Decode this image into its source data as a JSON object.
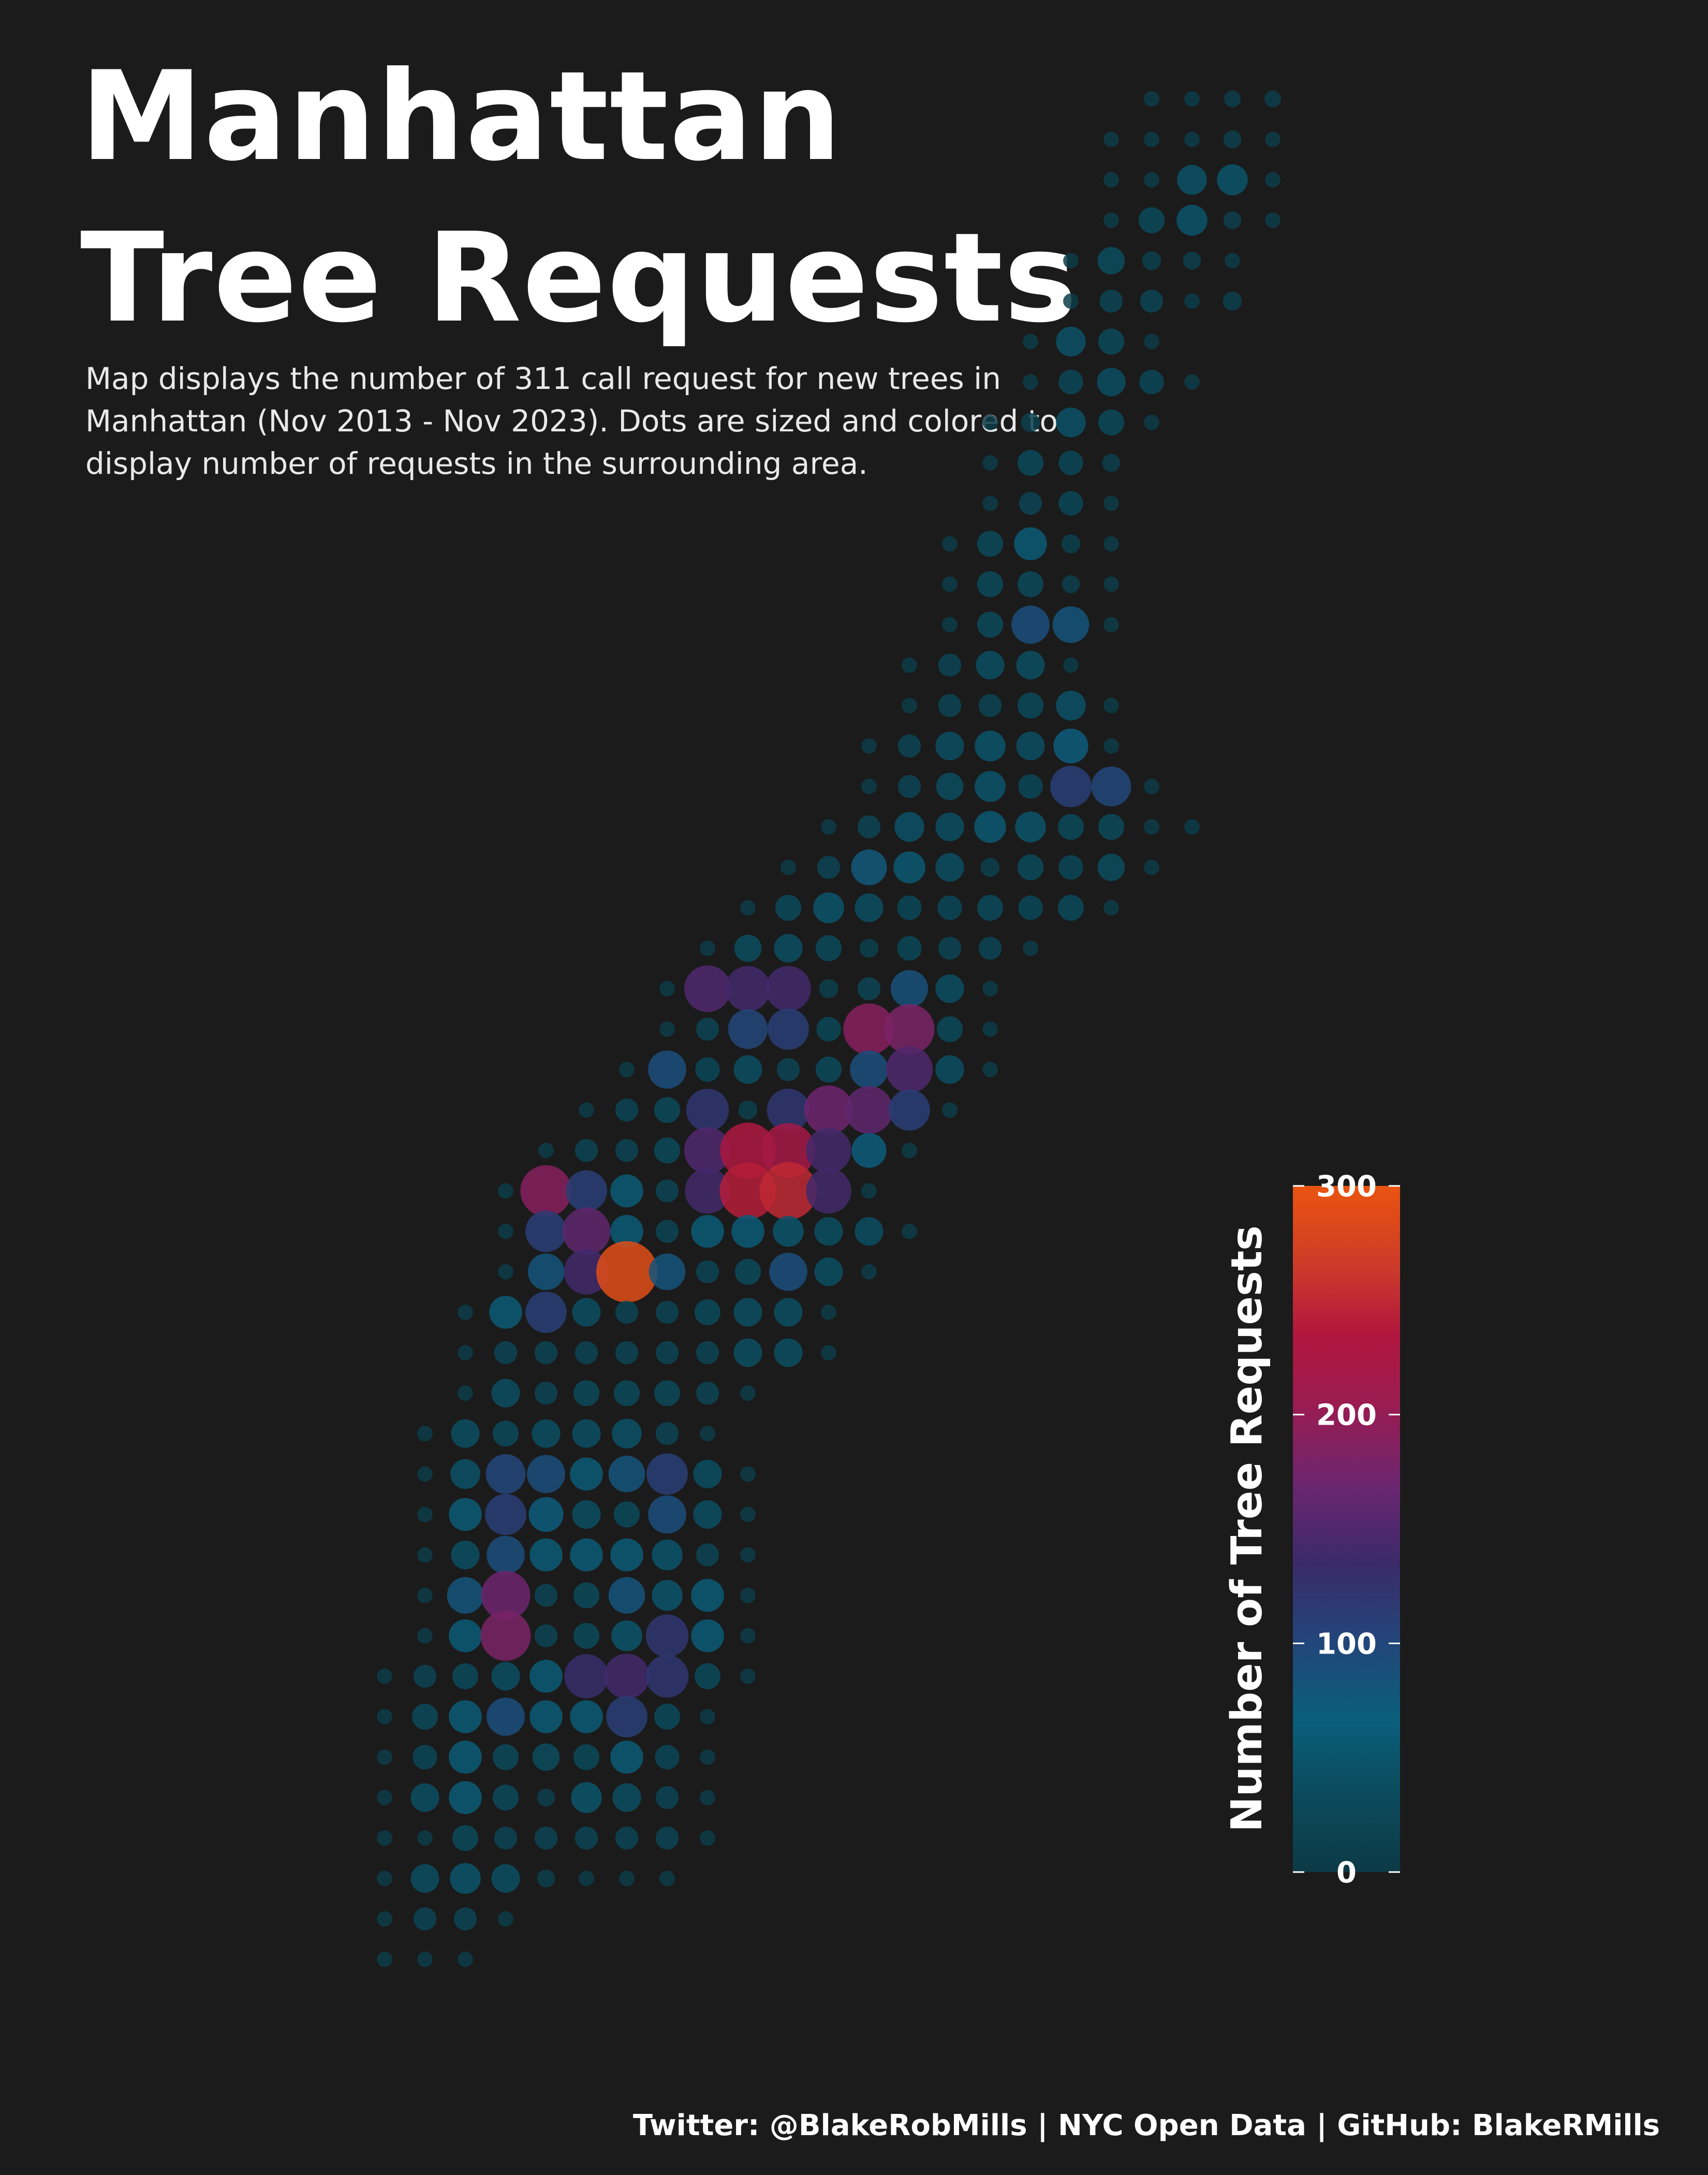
{
  "title": {
    "line1": "Manhattan",
    "line2": "Tree Requests"
  },
  "subtitle": "Map displays the number of 311 call request for new trees in Manhattan (Nov 2013 - Nov 2023). Dots are sized and colored to display number of requests in the surrounding area.",
  "caption": "Twitter: @BlakeRobMills | NYC Open Data | GitHub: BlakeRMills",
  "colors": {
    "background": "#1b1b1b",
    "text": "#ffffff",
    "scale": [
      "#0c3a46",
      "#0a5f7c",
      "#23457a",
      "#3b2a6a",
      "#6a2670",
      "#a8174a",
      "#c8302c",
      "#e85010"
    ]
  },
  "legend": {
    "title": "Number of Tree Requests",
    "min": 0,
    "max": 300,
    "ticks": [
      "0",
      "100",
      "200",
      "300"
    ]
  },
  "chart_data": {
    "type": "map",
    "grid_rows": [
      {
        "row": 0,
        "values": [
          4,
          4,
          6,
          6
        ]
      },
      {
        "row": 1,
        "values": [
          4,
          4,
          4,
          8,
          4
        ]
      },
      {
        "row": 2,
        "values": [
          4,
          4,
          45,
          50,
          4
        ]
      },
      {
        "row": 3,
        "values": [
          4,
          30,
          50,
          8,
          4
        ]
      },
      {
        "row": 4,
        "values": [
          4,
          35,
          10,
          8,
          4
        ]
      },
      {
        "row": 5,
        "values": [
          4,
          20,
          20,
          4,
          10
        ]
      },
      {
        "row": 6,
        "values": [
          4,
          45,
          30,
          4
        ]
      },
      {
        "row": 7,
        "values": [
          4,
          25,
          40,
          25,
          4
        ]
      },
      {
        "row": 8,
        "values": [
          4,
          10,
          45,
          30,
          4
        ]
      },
      {
        "row": 9,
        "values": [
          4,
          30,
          25,
          8
        ]
      },
      {
        "row": 10,
        "values": [
          4,
          20,
          25,
          4
        ]
      },
      {
        "row": 11,
        "values": [
          4,
          30,
          60,
          10,
          4
        ]
      },
      {
        "row": 12,
        "values": [
          4,
          30,
          30,
          8,
          4
        ]
      },
      {
        "row": 13,
        "values": [
          4,
          30,
          90,
          80,
          4
        ]
      },
      {
        "row": 14,
        "values": [
          4,
          20,
          40,
          40,
          4
        ]
      },
      {
        "row": 15,
        "values": [
          4,
          20,
          20,
          30,
          45,
          4
        ]
      },
      {
        "row": 16,
        "values": [
          4,
          20,
          40,
          50,
          40,
          70,
          4
        ]
      },
      {
        "row": 17,
        "values": [
          4,
          20,
          35,
          50,
          25,
          110,
          100,
          4
        ]
      },
      {
        "row": 18,
        "values": [
          4,
          20,
          45,
          40,
          55,
          50,
          30,
          30,
          4,
          4
        ]
      },
      {
        "row": 19,
        "values": [
          4,
          20,
          75,
          55,
          40,
          10,
          30,
          25,
          35,
          4
        ]
      },
      {
        "row": 20,
        "values": [
          4,
          30,
          50,
          40,
          25,
          25,
          30,
          25,
          30,
          4
        ]
      },
      {
        "row": 21,
        "values": [
          4,
          35,
          40,
          30,
          10,
          25,
          20,
          20,
          4
        ]
      },
      {
        "row": 22,
        "values": [
          4,
          150,
          140,
          140,
          10,
          20,
          85,
          40,
          4
        ]
      },
      {
        "row": 23,
        "values": [
          4,
          20,
          100,
          110,
          25,
          190,
          180,
          30,
          4
        ]
      },
      {
        "row": 24,
        "values": [
          4,
          90,
          25,
          40,
          20,
          30,
          90,
          150,
          40,
          4
        ]
      },
      {
        "row": 25,
        "values": [
          4,
          20,
          30,
          120,
          10,
          120,
          170,
          160,
          110,
          4
        ]
      },
      {
        "row": 26,
        "values": [
          4,
          20,
          20,
          30,
          150,
          230,
          220,
          140,
          70,
          4
        ]
      },
      {
        "row": 27,
        "values": [
          4,
          190,
          110,
          60,
          20,
          140,
          240,
          250,
          140,
          4
        ]
      },
      {
        "row": 28,
        "values": [
          4,
          110,
          160,
          60,
          20,
          60,
          60,
          50,
          40,
          40,
          4
        ]
      },
      {
        "row": 29,
        "values": [
          4,
          80,
          140,
          290,
          80,
          20,
          30,
          90,
          40,
          4
        ]
      },
      {
        "row": 30,
        "values": [
          4,
          60,
          110,
          40,
          20,
          20,
          30,
          40,
          40,
          4
        ]
      },
      {
        "row": 31,
        "values": [
          4,
          20,
          20,
          20,
          20,
          20,
          20,
          40,
          40,
          4
        ]
      },
      {
        "row": 32,
        "values": [
          4,
          40,
          20,
          30,
          30,
          30,
          20,
          4
        ]
      },
      {
        "row": 33,
        "values": [
          4,
          40,
          30,
          40,
          40,
          45,
          20,
          4
        ]
      },
      {
        "row": 34,
        "values": [
          4,
          45,
          100,
          90,
          60,
          80,
          110,
          40,
          4
        ]
      },
      {
        "row": 35,
        "values": [
          4,
          60,
          110,
          70,
          40,
          30,
          90,
          40,
          4
        ]
      },
      {
        "row": 36,
        "values": [
          4,
          40,
          90,
          60,
          60,
          60,
          50,
          20,
          4
        ]
      },
      {
        "row": 37,
        "values": [
          4,
          80,
          170,
          20,
          30,
          80,
          50,
          60,
          4
        ]
      },
      {
        "row": 38,
        "values": [
          4,
          60,
          180,
          20,
          30,
          50,
          120,
          60,
          4
        ]
      },
      {
        "row": 39,
        "values": [
          4,
          20,
          30,
          40,
          60,
          130,
          140,
          120,
          30,
          4
        ]
      },
      {
        "row": 40,
        "values": [
          4,
          30,
          60,
          90,
          60,
          60,
          110,
          30,
          4
        ]
      },
      {
        "row": 41,
        "values": [
          4,
          25,
          60,
          30,
          35,
          30,
          60,
          25,
          4
        ]
      },
      {
        "row": 42,
        "values": [
          4,
          40,
          60,
          30,
          8,
          50,
          40,
          20,
          4
        ]
      },
      {
        "row": 43,
        "values": [
          4,
          4,
          30,
          20,
          20,
          20,
          20,
          20,
          4
        ]
      },
      {
        "row": 44,
        "values": [
          4,
          40,
          50,
          40,
          8,
          4,
          4,
          4
        ]
      },
      {
        "row": 45,
        "values": [
          4,
          20,
          20,
          4
        ]
      },
      {
        "row": 46,
        "values": [
          4,
          4,
          4
        ]
      }
    ]
  }
}
